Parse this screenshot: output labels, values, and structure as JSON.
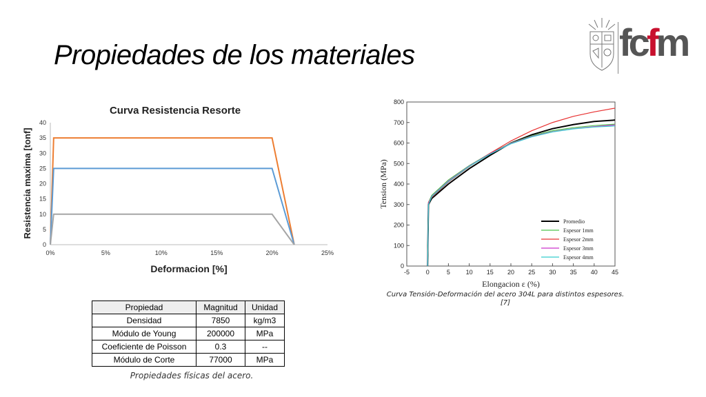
{
  "slide": {
    "title": "Propiedades de los materiales"
  },
  "logo": {
    "text_parts": [
      "f",
      "c",
      "f",
      "m"
    ],
    "colors": [
      "#555555",
      "#555555",
      "#c8102e",
      "#555555"
    ]
  },
  "chart_data": [
    {
      "type": "line",
      "title": "Curva Resistencia Resorte",
      "xlabel": "Deformacion [%]",
      "ylabel": "Resistencia maxima [tonf]",
      "xlim": [
        0,
        25
      ],
      "ylim": [
        0,
        40
      ],
      "xticks": [
        "0%",
        "5%",
        "10%",
        "15%",
        "20%",
        "25%"
      ],
      "yticks": [
        "0",
        "5",
        "10",
        "15",
        "20",
        "25",
        "30",
        "35",
        "40"
      ],
      "series": [
        {
          "color": "#ed7d31",
          "points": [
            [
              0,
              0
            ],
            [
              0.3,
              35
            ],
            [
              20,
              35
            ],
            [
              22,
              0
            ]
          ]
        },
        {
          "color": "#5b9bd5",
          "points": [
            [
              0,
              0
            ],
            [
              0.3,
              25
            ],
            [
              20,
              25
            ],
            [
              22,
              0
            ]
          ]
        },
        {
          "color": "#a5a5a5",
          "points": [
            [
              0,
              0
            ],
            [
              0.3,
              10
            ],
            [
              20,
              10
            ],
            [
              22,
              0
            ]
          ]
        }
      ]
    },
    {
      "type": "line",
      "xlabel": "Elongacion ε (%)",
      "ylabel": "Tension (MPa)",
      "xlim": [
        -5,
        45
      ],
      "ylim": [
        0,
        800
      ],
      "xticks": [
        "-5",
        "0",
        "5",
        "10",
        "15",
        "20",
        "25",
        "30",
        "35",
        "40",
        "45"
      ],
      "yticks": [
        "0",
        "100",
        "200",
        "300",
        "400",
        "500",
        "600",
        "700",
        "800"
      ],
      "legend_position": "bottom-right",
      "series": [
        {
          "name": "Promedio",
          "color": "#000000",
          "points": [
            [
              0,
              0
            ],
            [
              0.2,
              300
            ],
            [
              1,
              330
            ],
            [
              5,
              400
            ],
            [
              10,
              475
            ],
            [
              15,
              540
            ],
            [
              20,
              600
            ],
            [
              25,
              640
            ],
            [
              30,
              670
            ],
            [
              35,
              690
            ],
            [
              40,
              705
            ],
            [
              45,
              712
            ]
          ]
        },
        {
          "name": "Espesor 1mm",
          "color": "#4cc34c",
          "points": [
            [
              0,
              0
            ],
            [
              0.2,
              310
            ],
            [
              1,
              345
            ],
            [
              5,
              420
            ],
            [
              10,
              490
            ],
            [
              15,
              550
            ],
            [
              20,
              600
            ],
            [
              25,
              635
            ],
            [
              30,
              660
            ],
            [
              35,
              675
            ],
            [
              40,
              685
            ],
            [
              45,
              692
            ]
          ]
        },
        {
          "name": "Espesor 2mm",
          "color": "#e83030",
          "points": [
            [
              0,
              0
            ],
            [
              0.2,
              310
            ],
            [
              1,
              335
            ],
            [
              5,
              410
            ],
            [
              10,
              485
            ],
            [
              15,
              550
            ],
            [
              20,
              610
            ],
            [
              25,
              660
            ],
            [
              30,
              700
            ],
            [
              35,
              730
            ],
            [
              40,
              752
            ],
            [
              45,
              770
            ]
          ]
        },
        {
          "name": "Espesor 3mm",
          "color": "#cc33cc",
          "points": [
            [
              0,
              0
            ],
            [
              0.2,
              305
            ],
            [
              1,
              340
            ],
            [
              5,
              415
            ],
            [
              10,
              488
            ],
            [
              15,
              548
            ],
            [
              20,
              598
            ],
            [
              25,
              632
            ],
            [
              30,
              655
            ],
            [
              35,
              670
            ],
            [
              40,
              680
            ],
            [
              45,
              688
            ]
          ]
        },
        {
          "name": "Espesor 4mm",
          "color": "#33cccc",
          "points": [
            [
              0,
              0
            ],
            [
              0.2,
              300
            ],
            [
              1,
              338
            ],
            [
              5,
              412
            ],
            [
              10,
              486
            ],
            [
              15,
              546
            ],
            [
              20,
              596
            ],
            [
              25,
              630
            ],
            [
              30,
              654
            ],
            [
              35,
              669
            ],
            [
              40,
              678
            ],
            [
              45,
              683
            ]
          ]
        }
      ]
    }
  ],
  "chart2_caption": {
    "line1": "Curva Tensión-Deformación del acero 304L para distintos espesores.",
    "line2": "[7]"
  },
  "table": {
    "headers": [
      "Propiedad",
      "Magnitud",
      "Unidad"
    ],
    "rows": [
      [
        "Densidad",
        "7850",
        "kg/m3"
      ],
      [
        "Módulo de Young",
        "200000",
        "MPa"
      ],
      [
        "Coeficiente de Poisson",
        "0.3",
        "--"
      ],
      [
        "Módulo de Corte",
        "77000",
        "MPa"
      ]
    ],
    "caption": "Propiedades físicas del acero."
  }
}
